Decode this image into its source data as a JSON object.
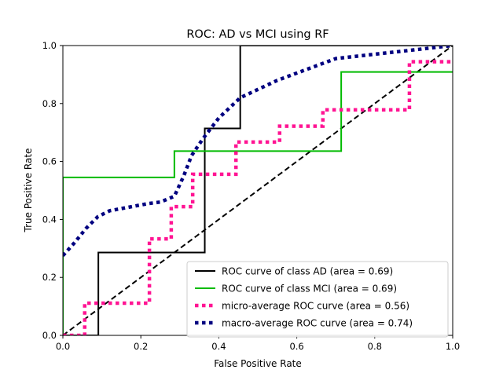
{
  "chart_data": {
    "type": "line",
    "title": "ROC: AD vs MCI using RF",
    "xlabel": "False Positive Rate",
    "ylabel": "True Positive Rate",
    "xlim": [
      0,
      1
    ],
    "ylim": [
      0,
      1
    ],
    "xticks": [
      0,
      0.2,
      0.4,
      0.6,
      0.8,
      1
    ],
    "xtick_labels": [
      "0.0",
      "0.2",
      "0.4",
      "0.6",
      "0.8",
      "1.0"
    ],
    "yticks": [
      0,
      0.2,
      0.4,
      0.6,
      0.8,
      1
    ],
    "ytick_labels": [
      "0.0",
      "0.2",
      "0.4",
      "0.6",
      "0.8",
      "1.0"
    ],
    "grid": false,
    "legend_position": "lower-right",
    "series": [
      {
        "name": "ROC curve of class  AD (area = 0.69)",
        "color": "#000000",
        "style": "solid",
        "x": [
          0,
          0,
          0.091,
          0.091,
          0.364,
          0.364,
          0.455,
          0.455,
          1
        ],
        "y": [
          0,
          0,
          0,
          0.286,
          0.286,
          0.714,
          0.714,
          1,
          1
        ]
      },
      {
        "name": "ROC curve of class  MCI (area = 0.69)",
        "color": "#00bb00",
        "style": "solid",
        "x": [
          0,
          0,
          0.286,
          0.286,
          0.714,
          0.714,
          1
        ],
        "y": [
          0,
          0.545,
          0.545,
          0.636,
          0.636,
          0.909,
          0.909
        ]
      },
      {
        "name": "micro-average ROC curve (area = 0.56)",
        "color": "#ff1493",
        "style": "dotted",
        "x": [
          0,
          0.056,
          0.056,
          0.222,
          0.222,
          0.278,
          0.278,
          0.333,
          0.333,
          0.444,
          0.444,
          0.556,
          0.556,
          0.667,
          0.667,
          0.889,
          0.889,
          1
        ],
        "y": [
          0,
          0,
          0.111,
          0.111,
          0.333,
          0.333,
          0.444,
          0.444,
          0.556,
          0.556,
          0.667,
          0.667,
          0.722,
          0.722,
          0.778,
          0.778,
          0.944,
          0.944
        ]
      },
      {
        "name": "macro-average ROC curve (area = 0.74)",
        "color": "#000080",
        "style": "dotted",
        "x": [
          0,
          0.03,
          0.06,
          0.09,
          0.12,
          0.18,
          0.22,
          0.25,
          0.286,
          0.31,
          0.33,
          0.36,
          0.4,
          0.455,
          0.55,
          0.65,
          0.7,
          0.8,
          0.9,
          1.0
        ],
        "y": [
          0.275,
          0.32,
          0.37,
          0.41,
          0.43,
          0.445,
          0.455,
          0.46,
          0.48,
          0.55,
          0.62,
          0.68,
          0.75,
          0.82,
          0.88,
          0.93,
          0.955,
          0.97,
          0.985,
          1.0
        ]
      },
      {
        "name": "",
        "color": "#000000",
        "style": "dashed",
        "x": [
          0,
          1
        ],
        "y": [
          0,
          1
        ]
      }
    ]
  }
}
